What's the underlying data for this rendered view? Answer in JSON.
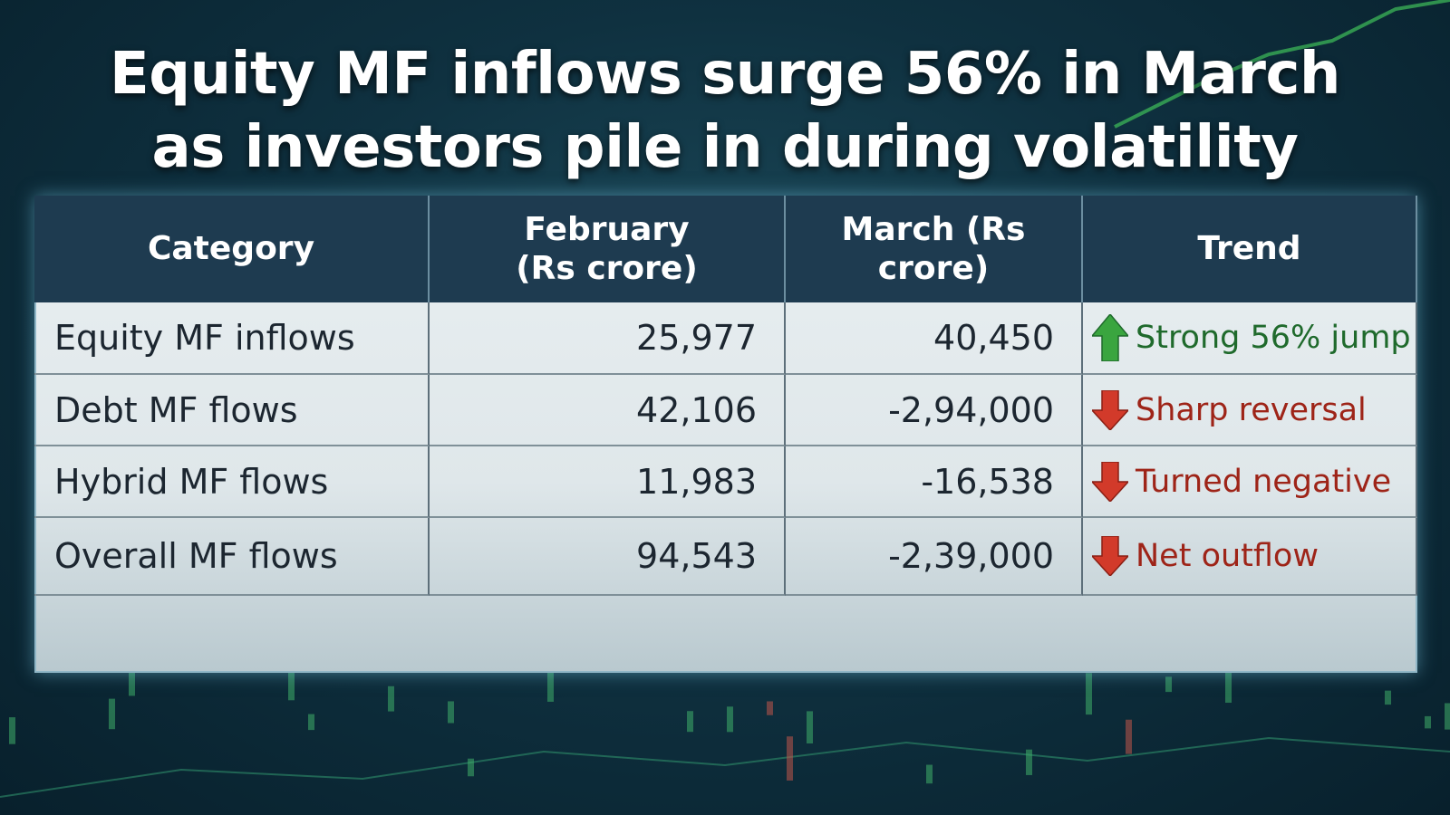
{
  "header": {
    "title": [
      "Equity MF inflows surge 56% in March",
      "as investors pile in during volatility"
    ]
  },
  "table": {
    "columns": [
      "Category",
      "February (Rs crore)",
      "March (Rs crore)",
      "Trend"
    ],
    "rows": [
      [
        "Equity MF inflows",
        "25,977",
        "40,450",
        "Strong 56% jump"
      ],
      [
        "Debt MF flows",
        "42,106",
        "-2,94,000",
        "Sharp reversal"
      ],
      [
        "Hybrid MF flows",
        "11,983",
        "-16,538",
        "Turned negative"
      ],
      [
        "Overall MF flows",
        "94,543",
        "-2,39,000",
        "Net outflow"
      ]
    ]
  }
}
